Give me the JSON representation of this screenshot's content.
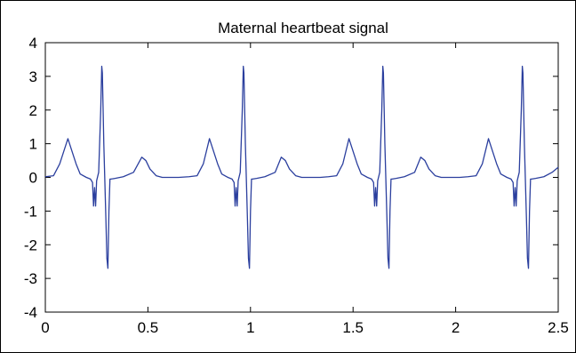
{
  "chart_data": {
    "type": "line",
    "title": "Maternal heartbeat signal",
    "xlabel": "",
    "ylabel": "",
    "xlim": [
      0,
      2.5
    ],
    "ylim": [
      -4,
      4
    ],
    "x_ticks": [
      0,
      0.5,
      1,
      1.5,
      2,
      2.5
    ],
    "x_tick_labels": [
      "0",
      "0.5",
      "1",
      "1.5",
      "2",
      "2.5"
    ],
    "y_ticks": [
      -4,
      -3,
      -2,
      -1,
      0,
      1,
      2,
      3,
      4
    ],
    "y_tick_labels": [
      "-4",
      "-3",
      "-2",
      "-1",
      "0",
      "1",
      "2",
      "3",
      "4"
    ],
    "grid": false,
    "series": [
      {
        "color": "#2b3f9e",
        "x": [
          0,
          0.04,
          0.07,
          0.11,
          0.15,
          0.17,
          0.2,
          0.22,
          0.23,
          0.235,
          0.24,
          0.245,
          0.25,
          0.26,
          0.27,
          0.275,
          0.278,
          0.285,
          0.295,
          0.3,
          0.305,
          0.31,
          0.315,
          0.32,
          0.34,
          0.38,
          0.43,
          0.47,
          0.49,
          0.51,
          0.54,
          0.57,
          0.6,
          0.65,
          0.7,
          0.74,
          0.77,
          0.8,
          0.84,
          0.86,
          0.89,
          0.91,
          0.92,
          0.925,
          0.93,
          0.935,
          0.94,
          0.95,
          0.96,
          0.965,
          0.968,
          0.975,
          0.985,
          0.99,
          0.995,
          1.0,
          1.005,
          1.01,
          1.03,
          1.07,
          1.12,
          1.15,
          1.17,
          1.19,
          1.22,
          1.25,
          1.3,
          1.34,
          1.38,
          1.42,
          1.45,
          1.48,
          1.52,
          1.54,
          1.57,
          1.59,
          1.6,
          1.605,
          1.61,
          1.615,
          1.62,
          1.63,
          1.64,
          1.645,
          1.648,
          1.655,
          1.665,
          1.67,
          1.675,
          1.68,
          1.685,
          1.69,
          1.71,
          1.75,
          1.8,
          1.83,
          1.85,
          1.87,
          1.9,
          1.93,
          1.97,
          2.02,
          2.06,
          2.1,
          2.13,
          2.16,
          2.2,
          2.22,
          2.25,
          2.27,
          2.28,
          2.285,
          2.29,
          2.295,
          2.3,
          2.31,
          2.32,
          2.325,
          2.328,
          2.335,
          2.345,
          2.35,
          2.355,
          2.36,
          2.365,
          2.37,
          2.39,
          2.43,
          2.47,
          2.5
        ],
        "y": [
          0.02,
          0.05,
          0.4,
          1.15,
          0.4,
          0.1,
          0.0,
          -0.05,
          -0.15,
          -0.85,
          -0.3,
          -0.85,
          -0.1,
          0.15,
          2.0,
          3.3,
          3.1,
          1.0,
          -1.2,
          -2.4,
          -2.7,
          -1.0,
          -0.05,
          -0.05,
          -0.03,
          0.02,
          0.15,
          0.6,
          0.5,
          0.25,
          0.05,
          0.0,
          0.0,
          0.0,
          0.02,
          0.05,
          0.4,
          1.15,
          0.4,
          0.1,
          0.0,
          -0.05,
          -0.15,
          -0.85,
          -0.3,
          -0.85,
          -0.1,
          0.15,
          2.0,
          3.3,
          3.1,
          1.0,
          -1.2,
          -2.4,
          -2.7,
          -1.0,
          -0.05,
          -0.05,
          -0.03,
          0.02,
          0.15,
          0.6,
          0.5,
          0.25,
          0.05,
          0.0,
          0.0,
          0.0,
          0.02,
          0.05,
          0.4,
          1.15,
          0.4,
          0.1,
          0.0,
          -0.05,
          -0.15,
          -0.85,
          -0.3,
          -0.85,
          -0.1,
          0.15,
          2.0,
          3.3,
          3.1,
          1.0,
          -1.2,
          -2.4,
          -2.7,
          -1.0,
          -0.05,
          -0.05,
          -0.03,
          0.02,
          0.15,
          0.6,
          0.5,
          0.25,
          0.05,
          0.0,
          0.0,
          0.0,
          0.02,
          0.05,
          0.4,
          1.15,
          0.4,
          0.1,
          0.0,
          -0.05,
          -0.15,
          -0.85,
          -0.3,
          -0.85,
          -0.1,
          0.15,
          2.0,
          3.3,
          3.1,
          1.0,
          -1.2,
          -2.4,
          -2.7,
          -1.0,
          -0.05,
          -0.05,
          -0.03,
          0.02,
          0.15,
          0.3
        ]
      }
    ]
  }
}
